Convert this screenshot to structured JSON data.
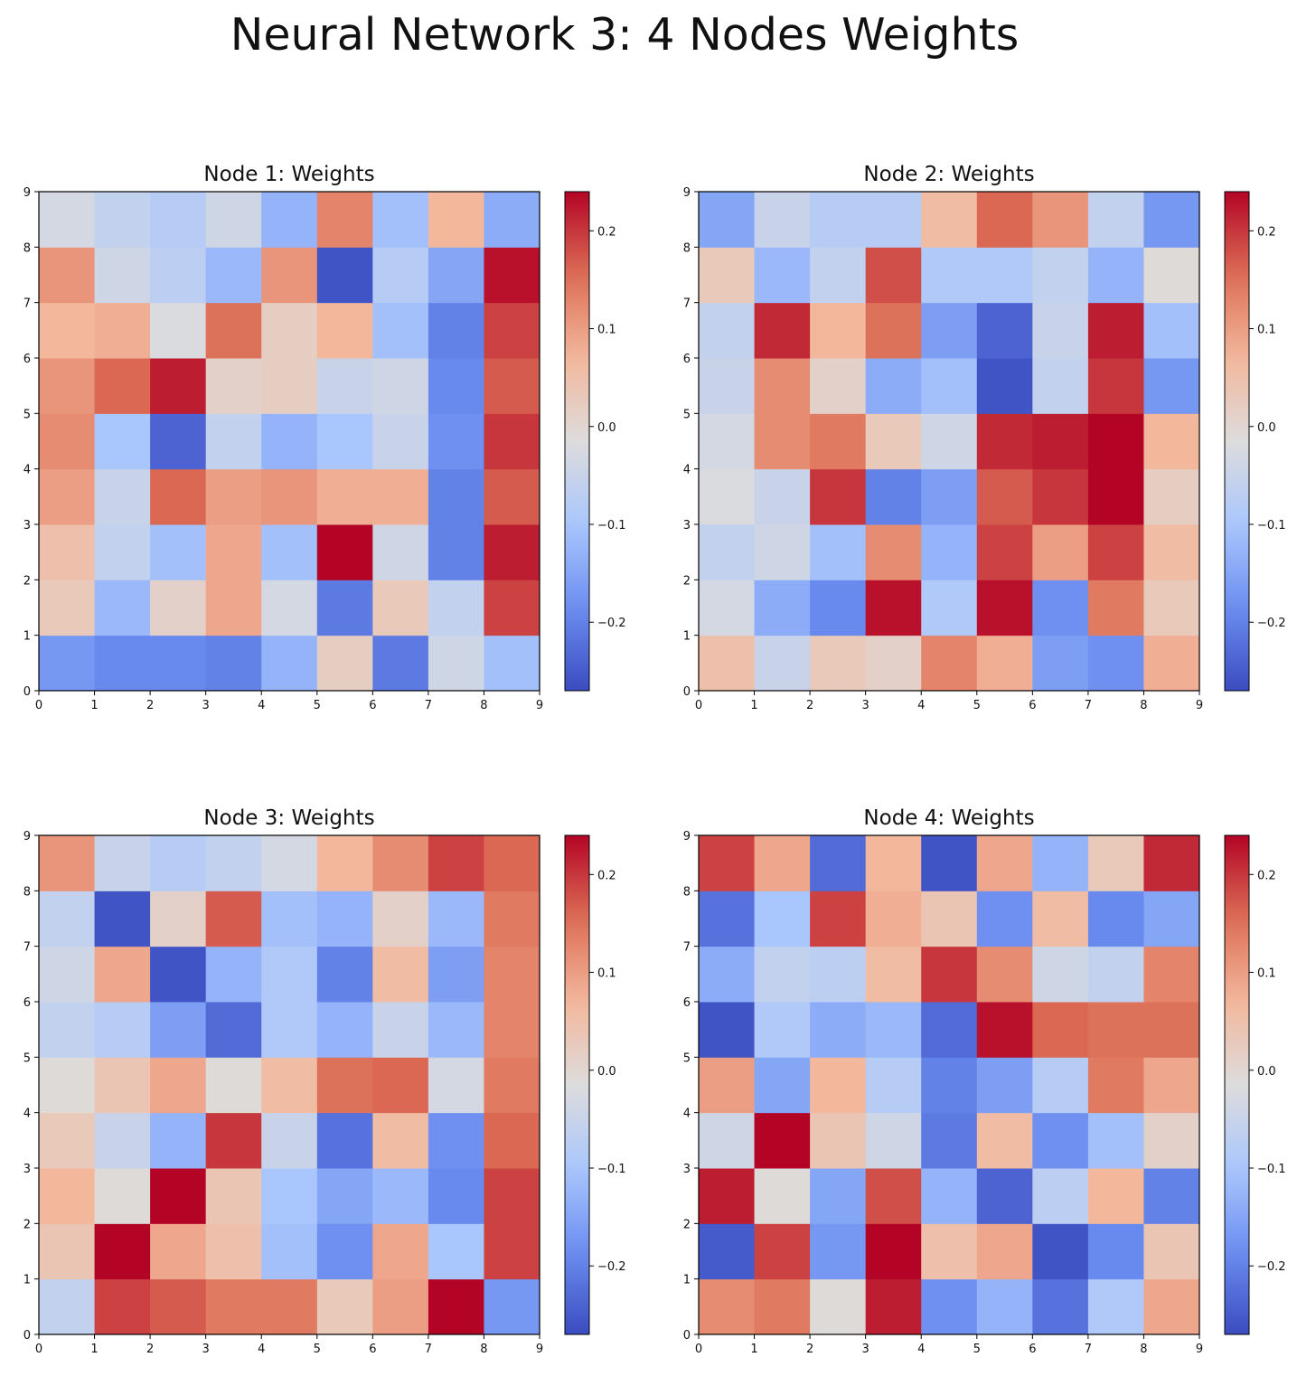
{
  "figure": {
    "title": "Neural Network 3: 4 Nodes Weights"
  },
  "colormap": {
    "name": "coolwarm",
    "stops": [
      "#3b4cc0",
      "#6b8df0",
      "#aac7fd",
      "#dddcdc",
      "#f3b89c",
      "#dc6e56",
      "#b40426"
    ]
  },
  "chart_data": [
    {
      "type": "heatmap",
      "title": "Node 1: Weights",
      "xticks": [
        "0",
        "1",
        "2",
        "3",
        "4",
        "5",
        "6",
        "7",
        "8",
        "9"
      ],
      "yticks": [
        "0",
        "1",
        "2",
        "3",
        "4",
        "5",
        "6",
        "7",
        "8",
        "9"
      ],
      "colorbar": {
        "min": -0.27,
        "max": 0.24,
        "ticks": [
          -0.2,
          -0.1,
          0.0,
          0.1,
          0.2
        ],
        "tick_labels": [
          "−0.2",
          "−0.1",
          "0.0",
          "0.1",
          "0.2"
        ]
      },
      "rows_bottom_to_top": [
        [
          -0.17,
          -0.19,
          -0.19,
          -0.2,
          -0.13,
          0.02,
          -0.21,
          -0.04,
          -0.11
        ],
        [
          0.03,
          -0.12,
          0.01,
          0.09,
          -0.03,
          -0.21,
          0.03,
          -0.06,
          0.19
        ],
        [
          0.05,
          -0.06,
          -0.11,
          0.09,
          -0.11,
          0.24,
          -0.04,
          -0.2,
          0.22
        ],
        [
          0.1,
          -0.05,
          0.16,
          0.1,
          0.11,
          0.08,
          0.08,
          -0.2,
          0.17
        ],
        [
          0.12,
          -0.1,
          -0.24,
          -0.06,
          -0.13,
          -0.1,
          -0.05,
          -0.18,
          0.2
        ],
        [
          0.11,
          0.16,
          0.22,
          0.01,
          0.02,
          -0.05,
          -0.04,
          -0.19,
          0.17
        ],
        [
          0.07,
          0.08,
          -0.02,
          0.15,
          0.02,
          0.07,
          -0.11,
          -0.2,
          0.19
        ],
        [
          0.11,
          -0.04,
          -0.07,
          -0.12,
          0.11,
          -0.26,
          -0.08,
          -0.15,
          0.23
        ],
        [
          -0.03,
          -0.06,
          -0.08,
          -0.04,
          -0.13,
          0.13,
          -0.11,
          0.07,
          -0.14
        ]
      ]
    },
    {
      "type": "heatmap",
      "title": "Node 2: Weights",
      "xticks": [
        "0",
        "1",
        "2",
        "3",
        "4",
        "5",
        "6",
        "7",
        "8",
        "9"
      ],
      "yticks": [
        "0",
        "1",
        "2",
        "3",
        "4",
        "5",
        "6",
        "7",
        "8",
        "9"
      ],
      "colorbar": {
        "min": -0.27,
        "max": 0.24,
        "ticks": [
          -0.2,
          -0.1,
          0.0,
          0.1,
          0.2
        ],
        "tick_labels": [
          "−0.2",
          "−0.1",
          "0.0",
          "0.1",
          "0.2"
        ]
      },
      "rows_bottom_to_top": [
        [
          0.05,
          -0.05,
          0.03,
          0.01,
          0.13,
          0.08,
          -0.16,
          -0.18,
          0.08
        ],
        [
          -0.03,
          -0.14,
          -0.19,
          0.23,
          -0.09,
          0.23,
          -0.18,
          0.14,
          0.03
        ],
        [
          -0.06,
          -0.04,
          -0.11,
          0.12,
          -0.13,
          0.19,
          0.1,
          0.19,
          0.06
        ],
        [
          -0.02,
          -0.05,
          0.2,
          -0.2,
          -0.16,
          0.17,
          0.2,
          0.24,
          0.02
        ],
        [
          -0.03,
          0.12,
          0.14,
          0.03,
          -0.04,
          0.21,
          0.22,
          0.24,
          0.07
        ],
        [
          -0.05,
          0.12,
          0.01,
          -0.14,
          -0.11,
          -0.26,
          -0.06,
          0.2,
          -0.17
        ],
        [
          -0.06,
          0.21,
          0.07,
          0.15,
          -0.16,
          -0.24,
          -0.05,
          0.22,
          -0.11
        ],
        [
          0.03,
          -0.12,
          -0.06,
          0.18,
          -0.09,
          -0.09,
          -0.06,
          -0.13,
          -0.01
        ],
        [
          -0.15,
          -0.05,
          -0.08,
          -0.08,
          0.06,
          0.16,
          0.11,
          -0.06,
          -0.17
        ]
      ]
    },
    {
      "type": "heatmap",
      "title": "Node 3: Weights",
      "xticks": [
        "0",
        "1",
        "2",
        "3",
        "4",
        "5",
        "6",
        "7",
        "8",
        "9"
      ],
      "yticks": [
        "0",
        "1",
        "2",
        "3",
        "4",
        "5",
        "6",
        "7",
        "8",
        "9"
      ],
      "colorbar": {
        "min": -0.27,
        "max": 0.24,
        "ticks": [
          -0.2,
          -0.1,
          0.0,
          0.1,
          0.2
        ],
        "tick_labels": [
          "−0.2",
          "−0.1",
          "0.0",
          "0.1",
          "0.2"
        ]
      },
      "rows_bottom_to_top": [
        [
          -0.06,
          0.19,
          0.17,
          0.14,
          0.14,
          0.03,
          0.1,
          0.24,
          -0.17
        ],
        [
          0.04,
          0.24,
          0.09,
          0.05,
          -0.11,
          -0.18,
          0.09,
          -0.1,
          0.19
        ],
        [
          0.07,
          -0.01,
          0.24,
          0.04,
          -0.1,
          -0.15,
          -0.12,
          -0.19,
          0.19
        ],
        [
          0.03,
          -0.05,
          -0.13,
          0.2,
          -0.05,
          -0.22,
          0.06,
          -0.18,
          0.16
        ],
        [
          -0.01,
          0.04,
          0.09,
          -0.01,
          0.06,
          0.15,
          0.16,
          -0.03,
          0.14
        ],
        [
          -0.06,
          -0.08,
          -0.16,
          -0.23,
          -0.09,
          -0.13,
          -0.05,
          -0.12,
          0.13
        ],
        [
          -0.04,
          0.09,
          -0.26,
          -0.13,
          -0.09,
          -0.2,
          0.06,
          -0.16,
          0.13
        ],
        [
          -0.06,
          -0.26,
          0.01,
          0.17,
          -0.11,
          -0.13,
          0.01,
          -0.12,
          0.14
        ],
        [
          0.11,
          -0.05,
          -0.08,
          -0.06,
          -0.03,
          0.07,
          0.12,
          0.19,
          0.16
        ]
      ]
    },
    {
      "type": "heatmap",
      "title": "Node 4: Weights",
      "xticks": [
        "0",
        "1",
        "2",
        "3",
        "4",
        "5",
        "6",
        "7",
        "8",
        "9"
      ],
      "yticks": [
        "0",
        "1",
        "2",
        "3",
        "4",
        "5",
        "6",
        "7",
        "8",
        "9"
      ],
      "colorbar": {
        "min": -0.27,
        "max": 0.24,
        "ticks": [
          -0.2,
          -0.1,
          0.0,
          0.1,
          0.2
        ],
        "tick_labels": [
          "−0.2",
          "−0.1",
          "0.0",
          "0.1",
          "0.2"
        ]
      },
      "rows_bottom_to_top": [
        [
          0.12,
          0.14,
          -0.01,
          0.22,
          -0.18,
          -0.13,
          -0.22,
          -0.09,
          0.09
        ],
        [
          -0.25,
          0.19,
          -0.17,
          0.24,
          0.05,
          0.09,
          -0.26,
          -0.19,
          0.04
        ],
        [
          0.22,
          -0.01,
          -0.15,
          0.18,
          -0.13,
          -0.24,
          -0.07,
          0.07,
          -0.2
        ],
        [
          -0.04,
          0.24,
          0.04,
          -0.04,
          -0.21,
          0.06,
          -0.18,
          -0.11,
          0.01
        ],
        [
          0.1,
          -0.15,
          0.07,
          -0.08,
          -0.2,
          -0.16,
          -0.08,
          0.14,
          0.09
        ],
        [
          -0.26,
          -0.09,
          -0.14,
          -0.12,
          -0.23,
          0.23,
          0.16,
          0.15,
          0.15
        ],
        [
          -0.14,
          -0.06,
          -0.07,
          0.06,
          0.2,
          0.12,
          -0.04,
          -0.06,
          0.13
        ],
        [
          -0.22,
          -0.1,
          0.19,
          0.08,
          0.04,
          -0.18,
          0.06,
          -0.19,
          -0.15
        ],
        [
          0.19,
          0.09,
          -0.23,
          0.07,
          -0.26,
          0.09,
          -0.13,
          0.03,
          0.21
        ]
      ]
    }
  ]
}
